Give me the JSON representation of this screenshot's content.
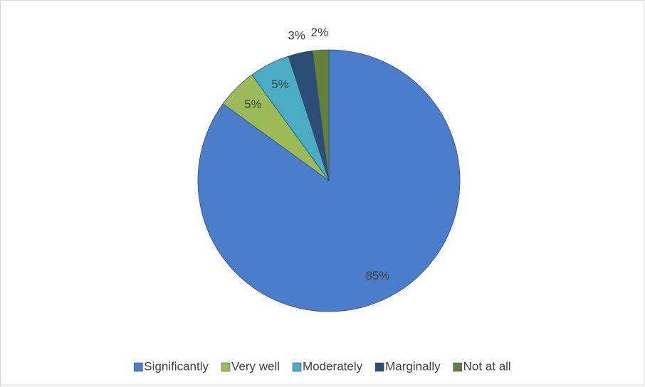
{
  "chart_data": {
    "type": "pie",
    "categories": [
      "Significantly",
      "Very well",
      "Moderately",
      "Marginally",
      "Not at all"
    ],
    "values": [
      85,
      5,
      5,
      3,
      2
    ],
    "value_labels": [
      "85%",
      "5%",
      "5%",
      "3%",
      "2%"
    ],
    "colors": [
      "#4a7ecb",
      "#9bbb59",
      "#4bacc6",
      "#2c4d75",
      "#65803a"
    ],
    "legend": "bottom"
  }
}
